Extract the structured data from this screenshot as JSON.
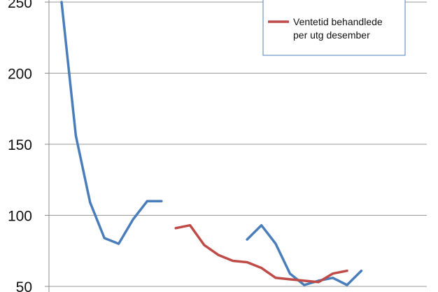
{
  "chart_data": {
    "type": "line",
    "y_ticks": [
      50,
      100,
      150,
      200,
      250
    ],
    "ylim": [
      50,
      250
    ],
    "grid": true,
    "legend_position": "top-right",
    "x": [
      1,
      2,
      3,
      4,
      5,
      6,
      7,
      8,
      9,
      10,
      11,
      12,
      13,
      14,
      15,
      16,
      17,
      18,
      19,
      20,
      21,
      22,
      23,
      24,
      25,
      26
    ],
    "series": [
      {
        "name": "",
        "color": "#4a7ebb",
        "values": [
          250,
          156,
          109,
          84,
          80,
          97,
          110,
          110,
          null,
          null,
          null,
          null,
          null,
          83,
          93,
          80,
          59,
          51,
          54,
          56,
          51,
          61,
          null,
          null,
          null,
          null
        ]
      },
      {
        "name": "",
        "color": "#be4b48",
        "values": [
          null,
          null,
          null,
          null,
          null,
          null,
          null,
          null,
          91,
          93,
          79,
          72,
          68,
          67,
          63,
          56,
          55,
          54,
          53,
          59,
          61,
          null,
          null,
          null,
          null,
          null
        ]
      }
    ],
    "legend_entries": [
      {
        "label": "",
        "color": "#4a7ebb"
      },
      {
        "label": "Ventetid behandlede per utg desember",
        "color": "#be4b48"
      }
    ]
  },
  "legend": {
    "line1": "Ventetid behandlede",
    "line2": "per utg desember"
  }
}
